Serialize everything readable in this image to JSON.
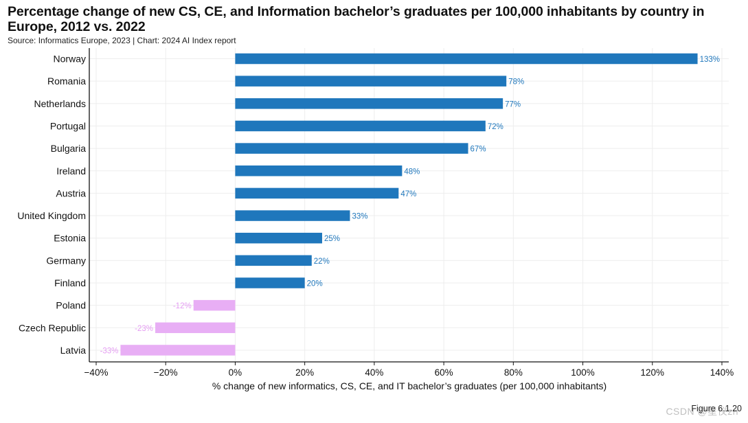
{
  "header": {
    "title": "Percentage change of new CS, CE, and Information bachelor’s graduates per 100,000 inhabitants by country in Europe, 2012 vs. 2022",
    "source": "Source: Informatics Europe, 2023 | Chart: 2024 AI Index report"
  },
  "footer": {
    "figure_label": "Figure 6.1.20",
    "watermark": "CSDN @星仪zn"
  },
  "chart_data": {
    "type": "bar",
    "orientation": "horizontal",
    "title": "Percentage change of new CS, CE, and Information bachelor’s graduates per 100,000 inhabitants by country in Europe, 2012 vs. 2022",
    "xlabel": "% change of new informatics, CS, CE, and IT bachelor’s graduates (per 100,000 inhabitants)",
    "ylabel": "",
    "xlim": [
      -40,
      140
    ],
    "xticks": [
      -40,
      -20,
      0,
      20,
      40,
      60,
      80,
      100,
      120,
      140
    ],
    "xtick_labels": [
      "−40%",
      "−20%",
      "0%",
      "20%",
      "40%",
      "60%",
      "80%",
      "100%",
      "120%",
      "140%"
    ],
    "grid": true,
    "categories": [
      "Norway",
      "Romania",
      "Netherlands",
      "Portugal",
      "Bulgaria",
      "Ireland",
      "Austria",
      "United Kingdom",
      "Estonia",
      "Germany",
      "Finland",
      "Poland",
      "Czech Republic",
      "Latvia"
    ],
    "values": [
      133,
      78,
      77,
      72,
      67,
      48,
      47,
      33,
      25,
      22,
      20,
      -12,
      -23,
      -33
    ],
    "labels": [
      "133%",
      "78%",
      "77%",
      "72%",
      "67%",
      "48%",
      "47%",
      "33%",
      "25%",
      "22%",
      "20%",
      "-12%",
      "-23%",
      "-33%"
    ],
    "colors": {
      "positive": "#1f77bc",
      "negative": "#e8aef5",
      "positive_label": "#1f77bc",
      "negative_label": "#e49cf2",
      "grid": "#ededed",
      "axis": "#111111"
    }
  }
}
